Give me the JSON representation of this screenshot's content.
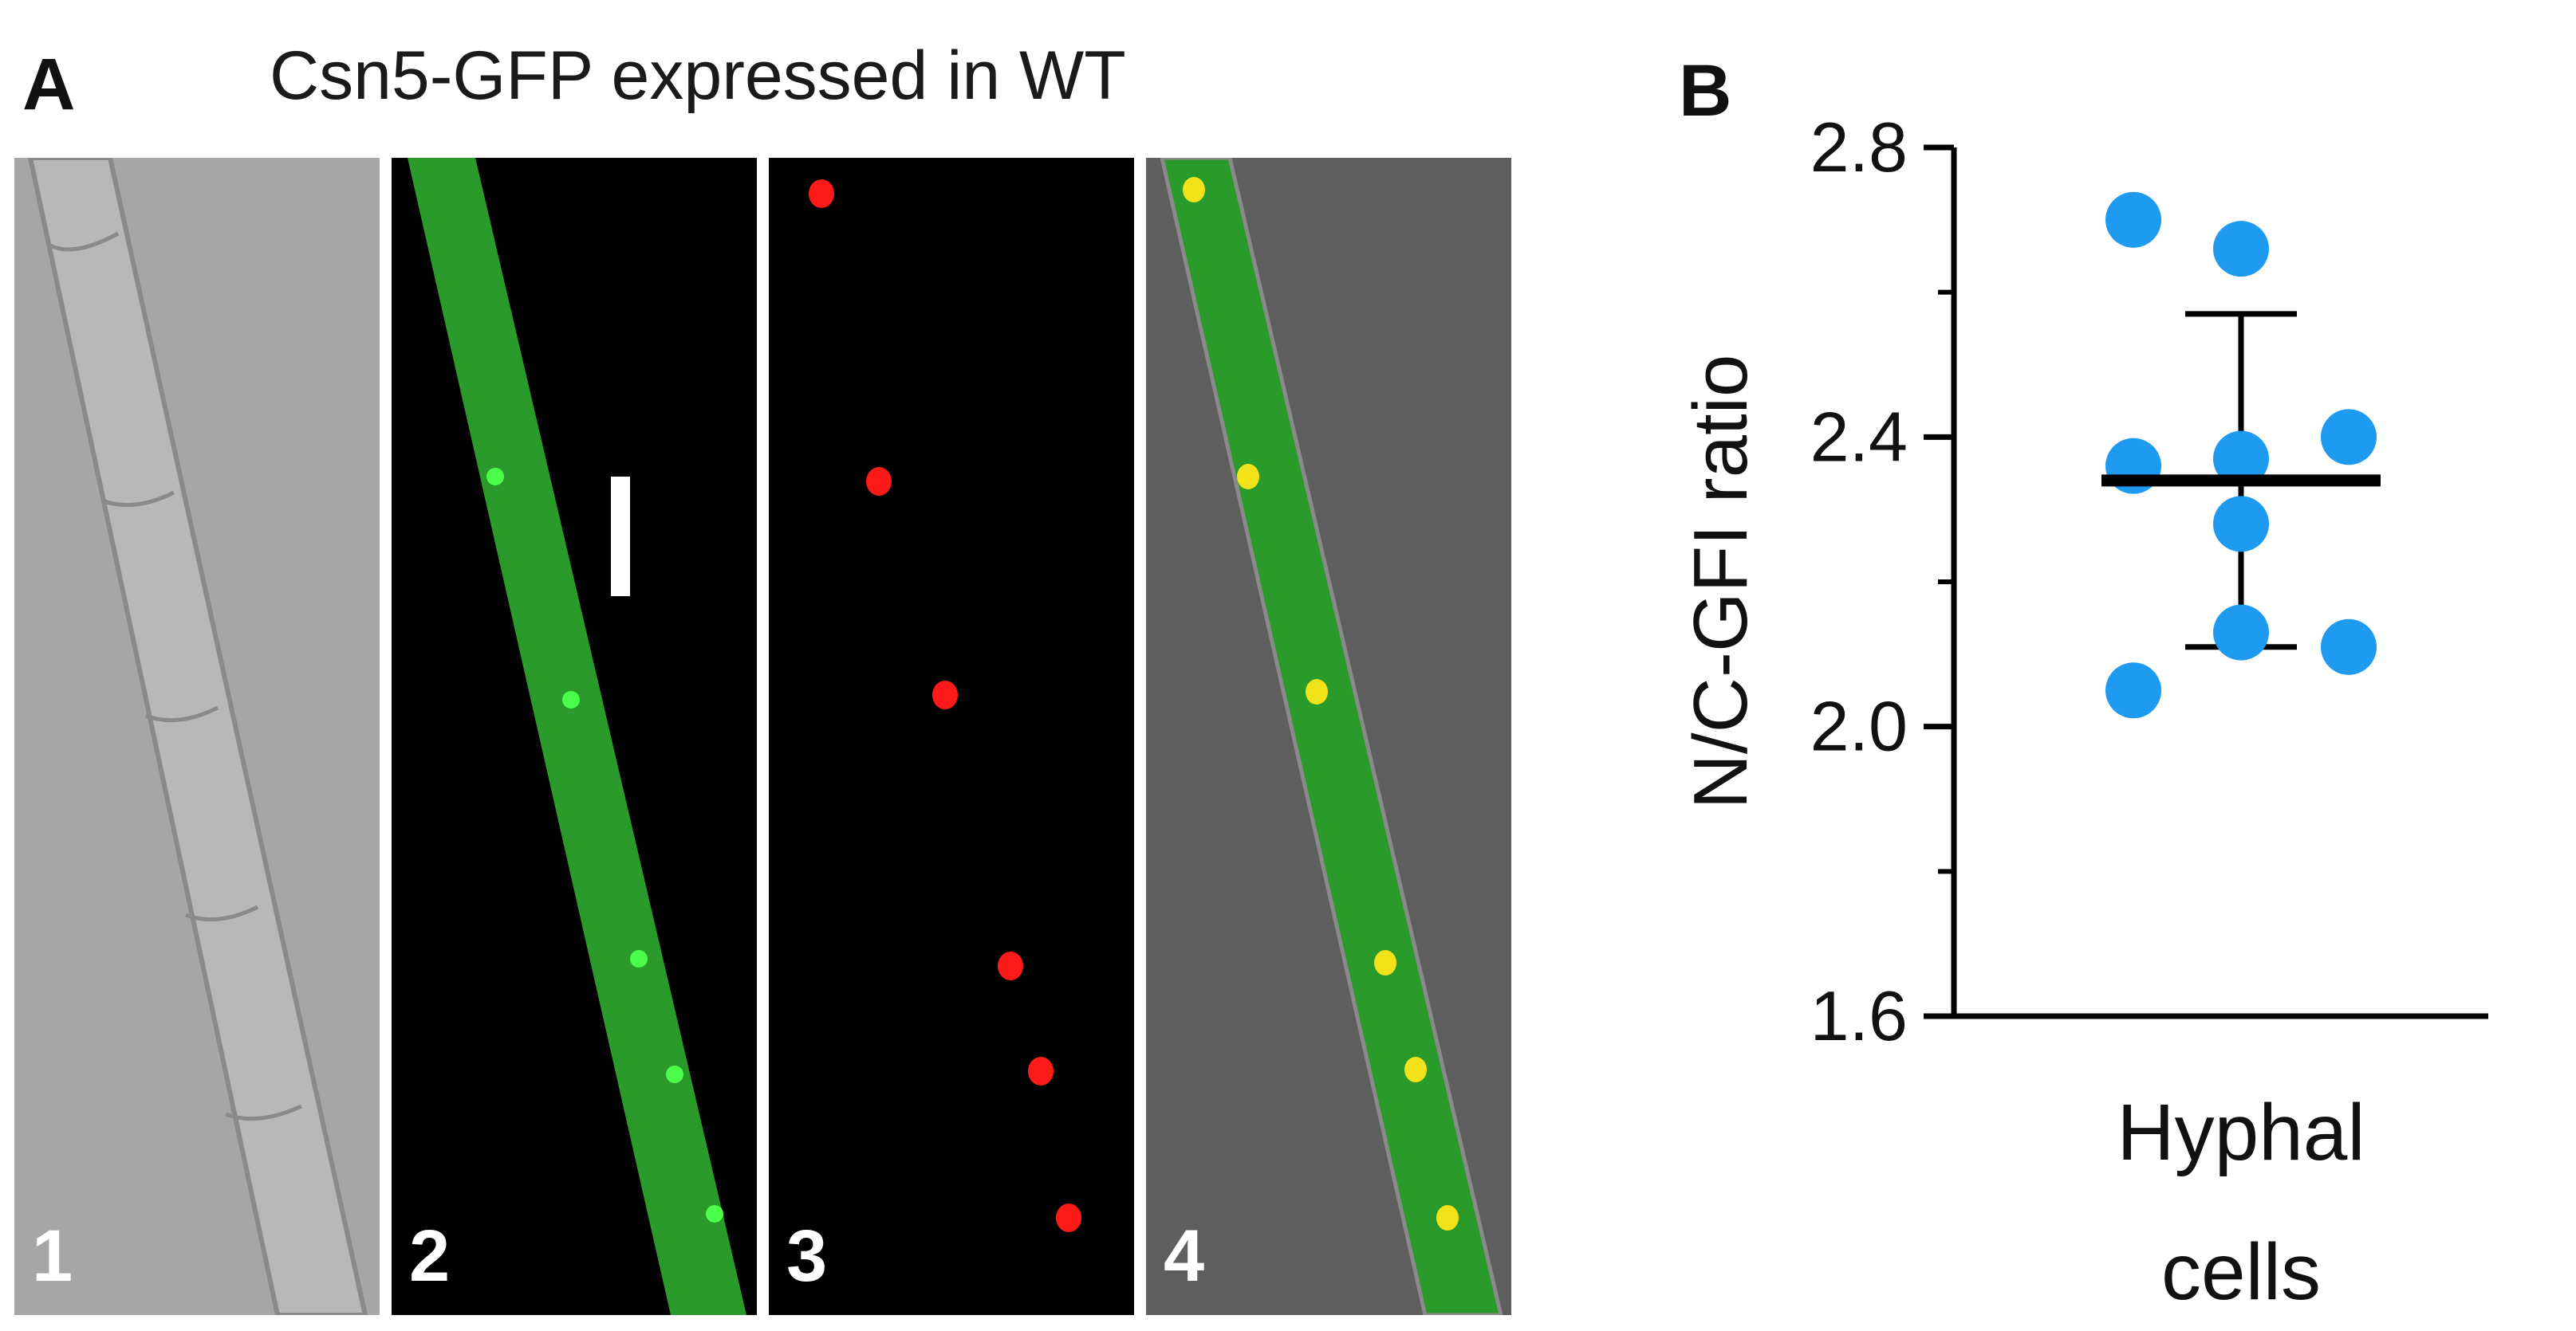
{
  "panel_a": {
    "letter": "A",
    "title": "Csn5-GFP expressed in WT",
    "images": [
      {
        "label": "1",
        "channel": "brightfield",
        "color": "#b3b3b3"
      },
      {
        "label": "2",
        "channel": "GFP",
        "color": "#2fb52f"
      },
      {
        "label": "3",
        "channel": "nuclear-red",
        "color": "#ff1a1a"
      },
      {
        "label": "4",
        "channel": "merge",
        "color": "#2fb52f"
      }
    ]
  },
  "panel_b": {
    "letter": "B"
  },
  "chart_data": {
    "type": "scatter",
    "ylabel": "N/C-GFI ratio",
    "categories": [
      "Hyphal cells"
    ],
    "category_label_lines": [
      "Hyphal",
      "cells"
    ],
    "ylim": [
      1.6,
      2.8
    ],
    "yticks": [
      1.6,
      2.0,
      2.4,
      2.8
    ],
    "ytick_labels": [
      "1.6",
      "2.0",
      "2.4",
      "2.8"
    ],
    "minor_ticks": [
      1.8,
      2.2,
      2.6
    ],
    "points": [
      {
        "x": -1,
        "y": 2.7
      },
      {
        "x": 0,
        "y": 2.66
      },
      {
        "x": -1,
        "y": 2.36
      },
      {
        "x": 0,
        "y": 2.37
      },
      {
        "x": 1,
        "y": 2.4
      },
      {
        "x": 0,
        "y": 2.28
      },
      {
        "x": 0,
        "y": 2.13
      },
      {
        "x": 1,
        "y": 2.11
      },
      {
        "x": -1,
        "y": 2.05
      }
    ],
    "mean": 2.34,
    "sd_upper": 2.57,
    "sd_lower": 2.11,
    "point_color": "#1e9bf0",
    "grid": false,
    "legend": "none"
  }
}
